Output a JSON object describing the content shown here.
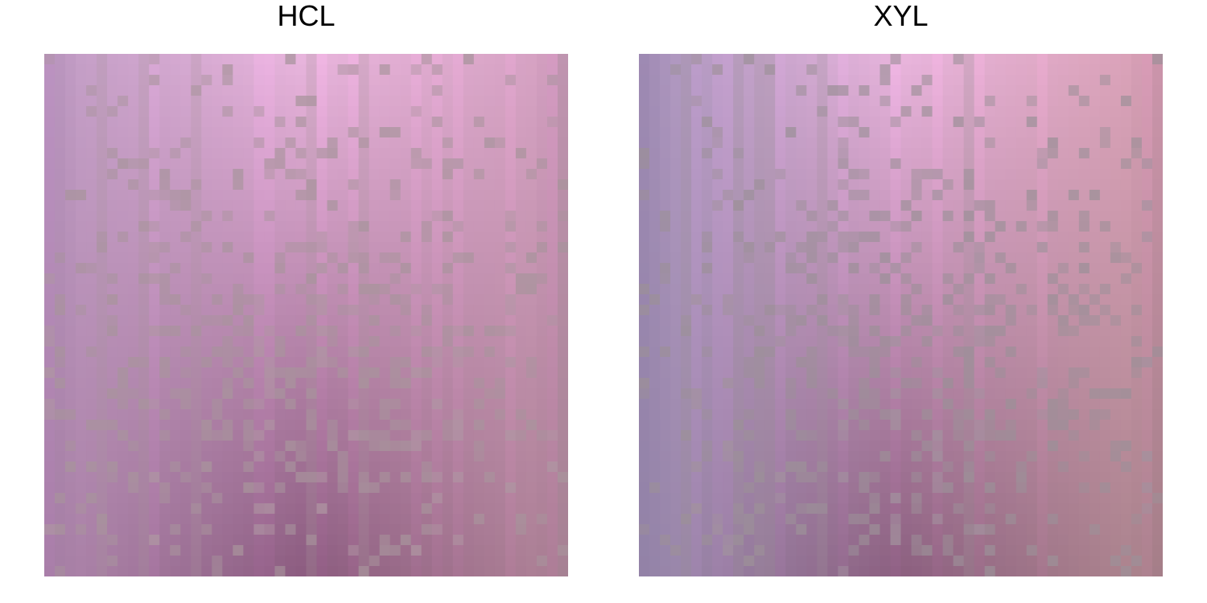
{
  "chart_data": [
    {
      "type": "heatmap",
      "title": "HCL",
      "grid": false,
      "legend": "none",
      "resolution": [
        50,
        50
      ],
      "colors": {
        "top_center": "#e8b4dc",
        "top_left": "#c09cc4",
        "top_right": "#d4a0c0",
        "bottom_center": "#8c5c80",
        "bottom_left": "#ae86ac",
        "bottom_right": "#b08498",
        "gray_cell": "#a8949c"
      }
    },
    {
      "type": "heatmap",
      "title": "XYL",
      "grid": false,
      "legend": "none",
      "resolution": [
        50,
        50
      ],
      "colors": {
        "top_center": "#e8b4dc",
        "top_left": "#a894bc",
        "top_right": "#d8a0b4",
        "bottom_center": "#8c6080",
        "bottom_left": "#9c8cb0",
        "bottom_right": "#b08890",
        "gray_cell": "#9c9098"
      }
    }
  ]
}
